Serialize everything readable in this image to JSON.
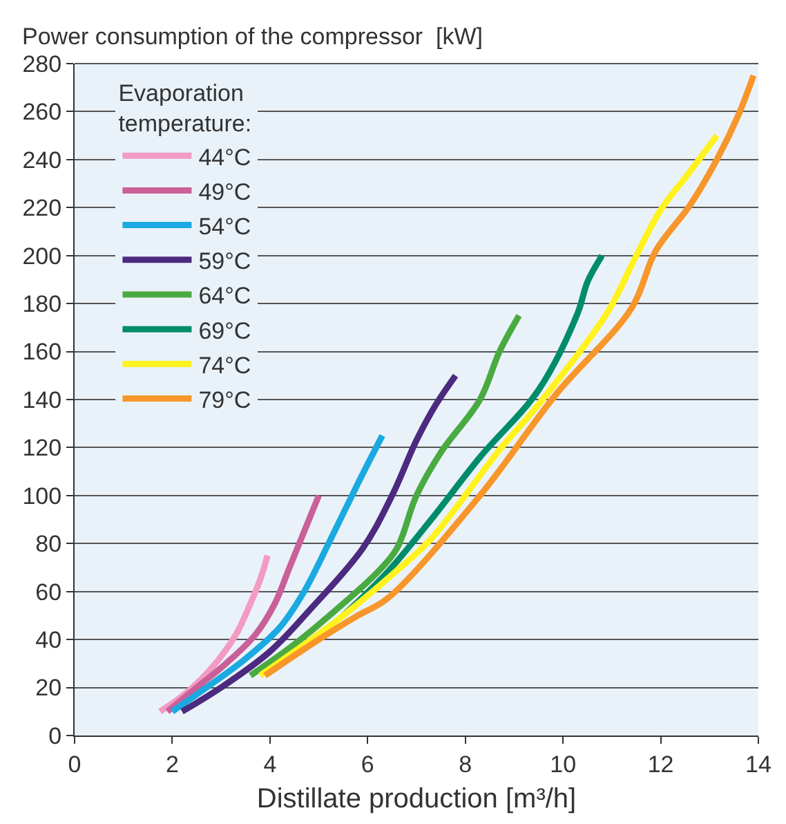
{
  "chart_data": {
    "type": "line",
    "ylabel": "Power consumption of the compressor  [kW]",
    "xlabel": "Distillate production [m³/h]",
    "legend_title": "Evaporation temperature:",
    "legend": "top left",
    "grid": "y",
    "marker": "none",
    "line_style": "solid",
    "xlim": [
      0,
      14
    ],
    "xticks": [
      0,
      2,
      4,
      6,
      8,
      10,
      12,
      14
    ],
    "ylim": [
      0,
      280
    ],
    "yticks": [
      0,
      20,
      40,
      60,
      80,
      100,
      120,
      140,
      160,
      180,
      200,
      220,
      240,
      260,
      280
    ],
    "series": [
      {
        "name": "44°C",
        "color": "#f39bc3",
        "x": [
          1.75,
          2.3,
          2.8,
          3.3,
          3.6,
          3.8,
          3.95
        ],
        "values": [
          10,
          18,
          28,
          42,
          55,
          65,
          75
        ]
      },
      {
        "name": "49°C",
        "color": "#c9609a",
        "x": [
          1.9,
          2.5,
          3.1,
          3.7,
          4.1,
          4.4,
          4.7,
          5.0
        ],
        "values": [
          10,
          20,
          30,
          42,
          55,
          70,
          85,
          100
        ]
      },
      {
        "name": "54°C",
        "color": "#1aa9e0",
        "x": [
          2.0,
          2.7,
          3.5,
          4.2,
          4.7,
          5.2,
          5.8,
          6.3
        ],
        "values": [
          10,
          20,
          32,
          45,
          60,
          80,
          105,
          125
        ]
      },
      {
        "name": "59°C",
        "color": "#4b2a7f",
        "x": [
          2.2,
          3.0,
          4.0,
          4.8,
          5.9,
          6.5,
          7.0,
          7.4,
          7.8
        ],
        "values": [
          10,
          20,
          35,
          52,
          78,
          100,
          123,
          138,
          150
        ]
      },
      {
        "name": "64°C",
        "color": "#4aaa42",
        "x": [
          3.6,
          4.5,
          5.5,
          6.2,
          6.6,
          7.0,
          7.5,
          8.3,
          8.7,
          9.1
        ],
        "values": [
          25,
          38,
          55,
          68,
          78,
          100,
          118,
          140,
          160,
          175
        ]
      },
      {
        "name": "69°C",
        "color": "#008c6a",
        "x": [
          5.5,
          6.4,
          7.3,
          8.3,
          9.5,
          10.3,
          10.5,
          10.8
        ],
        "values": [
          50,
          68,
          90,
          116,
          144,
          176,
          189,
          200
        ]
      },
      {
        "name": "74°C",
        "color": "#fff21f",
        "x": [
          3.8,
          4.5,
          5.5,
          6.5,
          7.3,
          8.7,
          9.5,
          10.9,
          11.5,
          12.0,
          12.6,
          13.15
        ],
        "values": [
          25,
          35,
          50,
          67,
          82,
          119,
          138,
          176,
          200,
          219,
          235,
          250
        ]
      },
      {
        "name": "79°C",
        "color": "#f7962a",
        "x": [
          3.9,
          5.0,
          5.8,
          6.4,
          8.3,
          9.85,
          11.4,
          11.9,
          12.6,
          13.15,
          13.6,
          13.9
        ],
        "values": [
          25,
          40,
          50,
          57,
          100,
          142,
          178,
          202,
          221,
          240,
          259,
          275
        ]
      }
    ]
  }
}
